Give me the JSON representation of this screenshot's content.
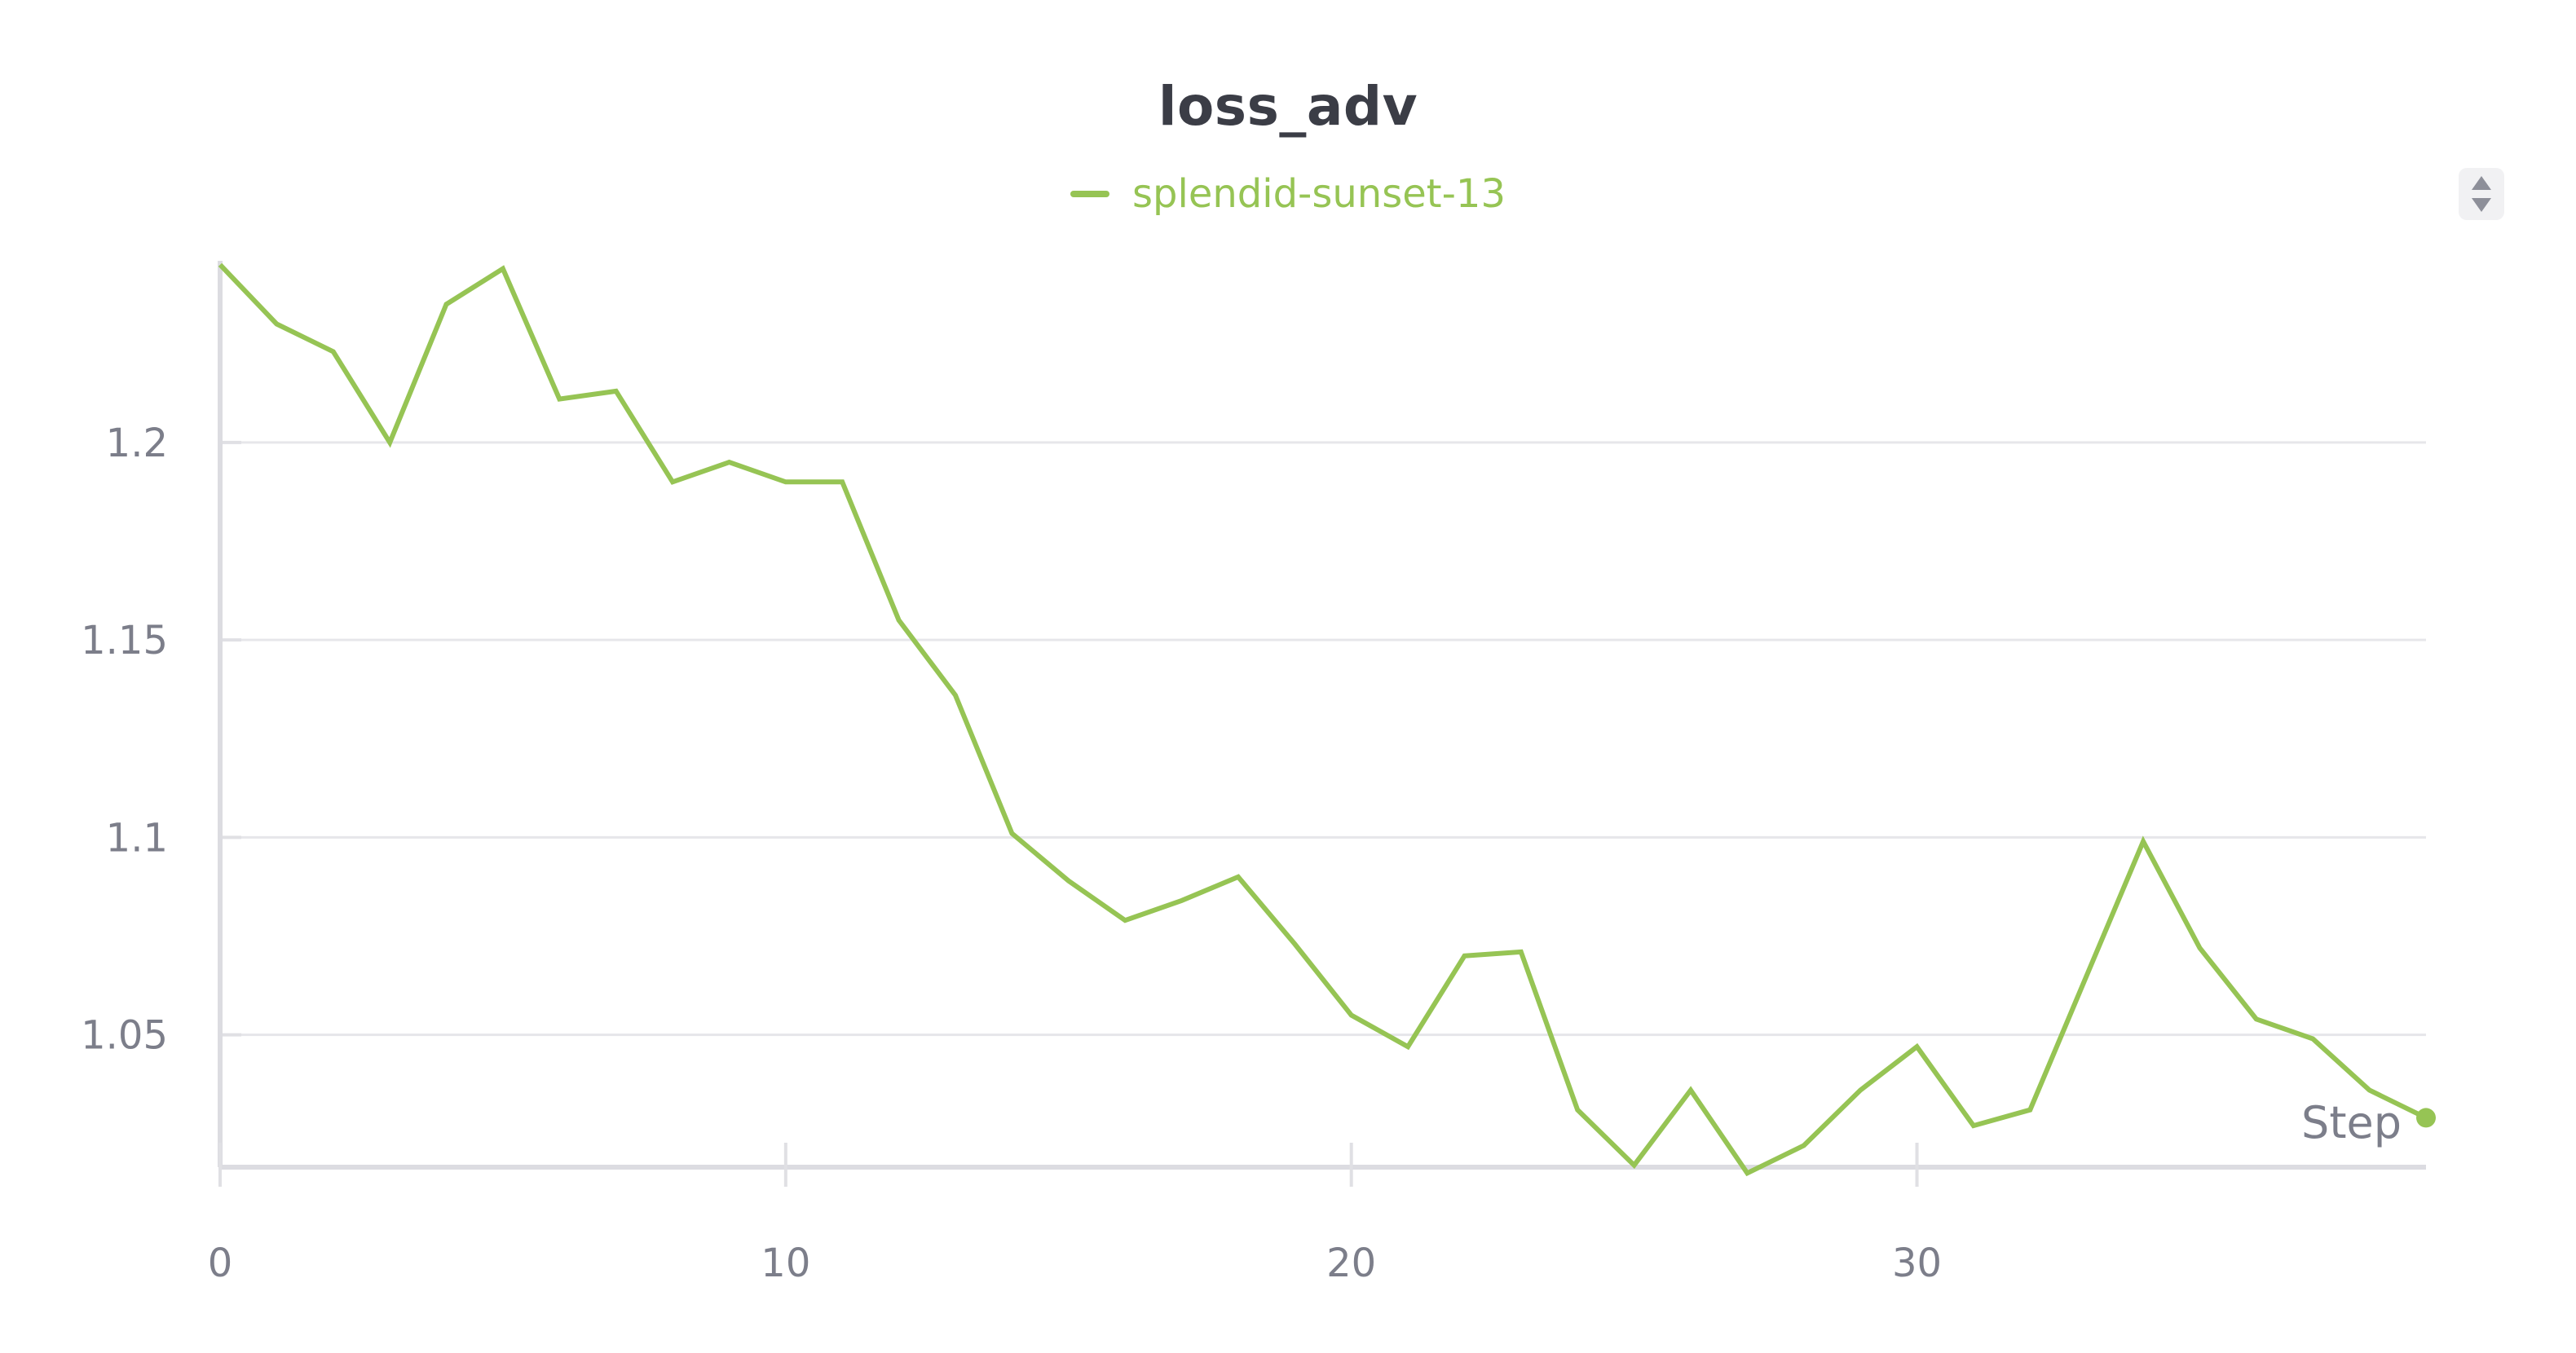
{
  "chart_data": {
    "type": "line",
    "title": "loss_adv",
    "xlabel": "Step",
    "ylabel": "",
    "xlim": [
      0,
      39
    ],
    "ylim": [
      1.0165,
      1.246
    ],
    "xticks": [
      0,
      10,
      20,
      30
    ],
    "yticks": [
      1.05,
      1.1,
      1.15,
      1.2
    ],
    "ytick_labels": [
      "1.05",
      "1.1",
      "1.15",
      "1.2"
    ],
    "grid": true,
    "legend_position": "top-center",
    "series": [
      {
        "name": "splendid-sunset-13",
        "color": "#96c454",
        "x": [
          0,
          1,
          2,
          3,
          4,
          5,
          6,
          7,
          8,
          9,
          10,
          11,
          12,
          13,
          14,
          15,
          16,
          17,
          18,
          19,
          20,
          21,
          22,
          23,
          24,
          25,
          26,
          27,
          28,
          29,
          30,
          31,
          32,
          33,
          34,
          35,
          36,
          37,
          38,
          39
        ],
        "y": [
          1.245,
          1.23,
          1.223,
          1.2,
          1.235,
          1.244,
          1.211,
          1.213,
          1.19,
          1.195,
          1.19,
          1.19,
          1.155,
          1.136,
          1.101,
          1.089,
          1.079,
          1.084,
          1.09,
          1.073,
          1.055,
          1.047,
          1.07,
          1.071,
          1.031,
          1.017,
          1.036,
          1.015,
          1.022,
          1.036,
          1.047,
          1.027,
          1.031,
          1.065,
          1.099,
          1.072,
          1.054,
          1.049,
          1.036,
          1.029
        ]
      }
    ]
  },
  "ui": {
    "sort_handle_icon": "sort-arrows-icon"
  }
}
